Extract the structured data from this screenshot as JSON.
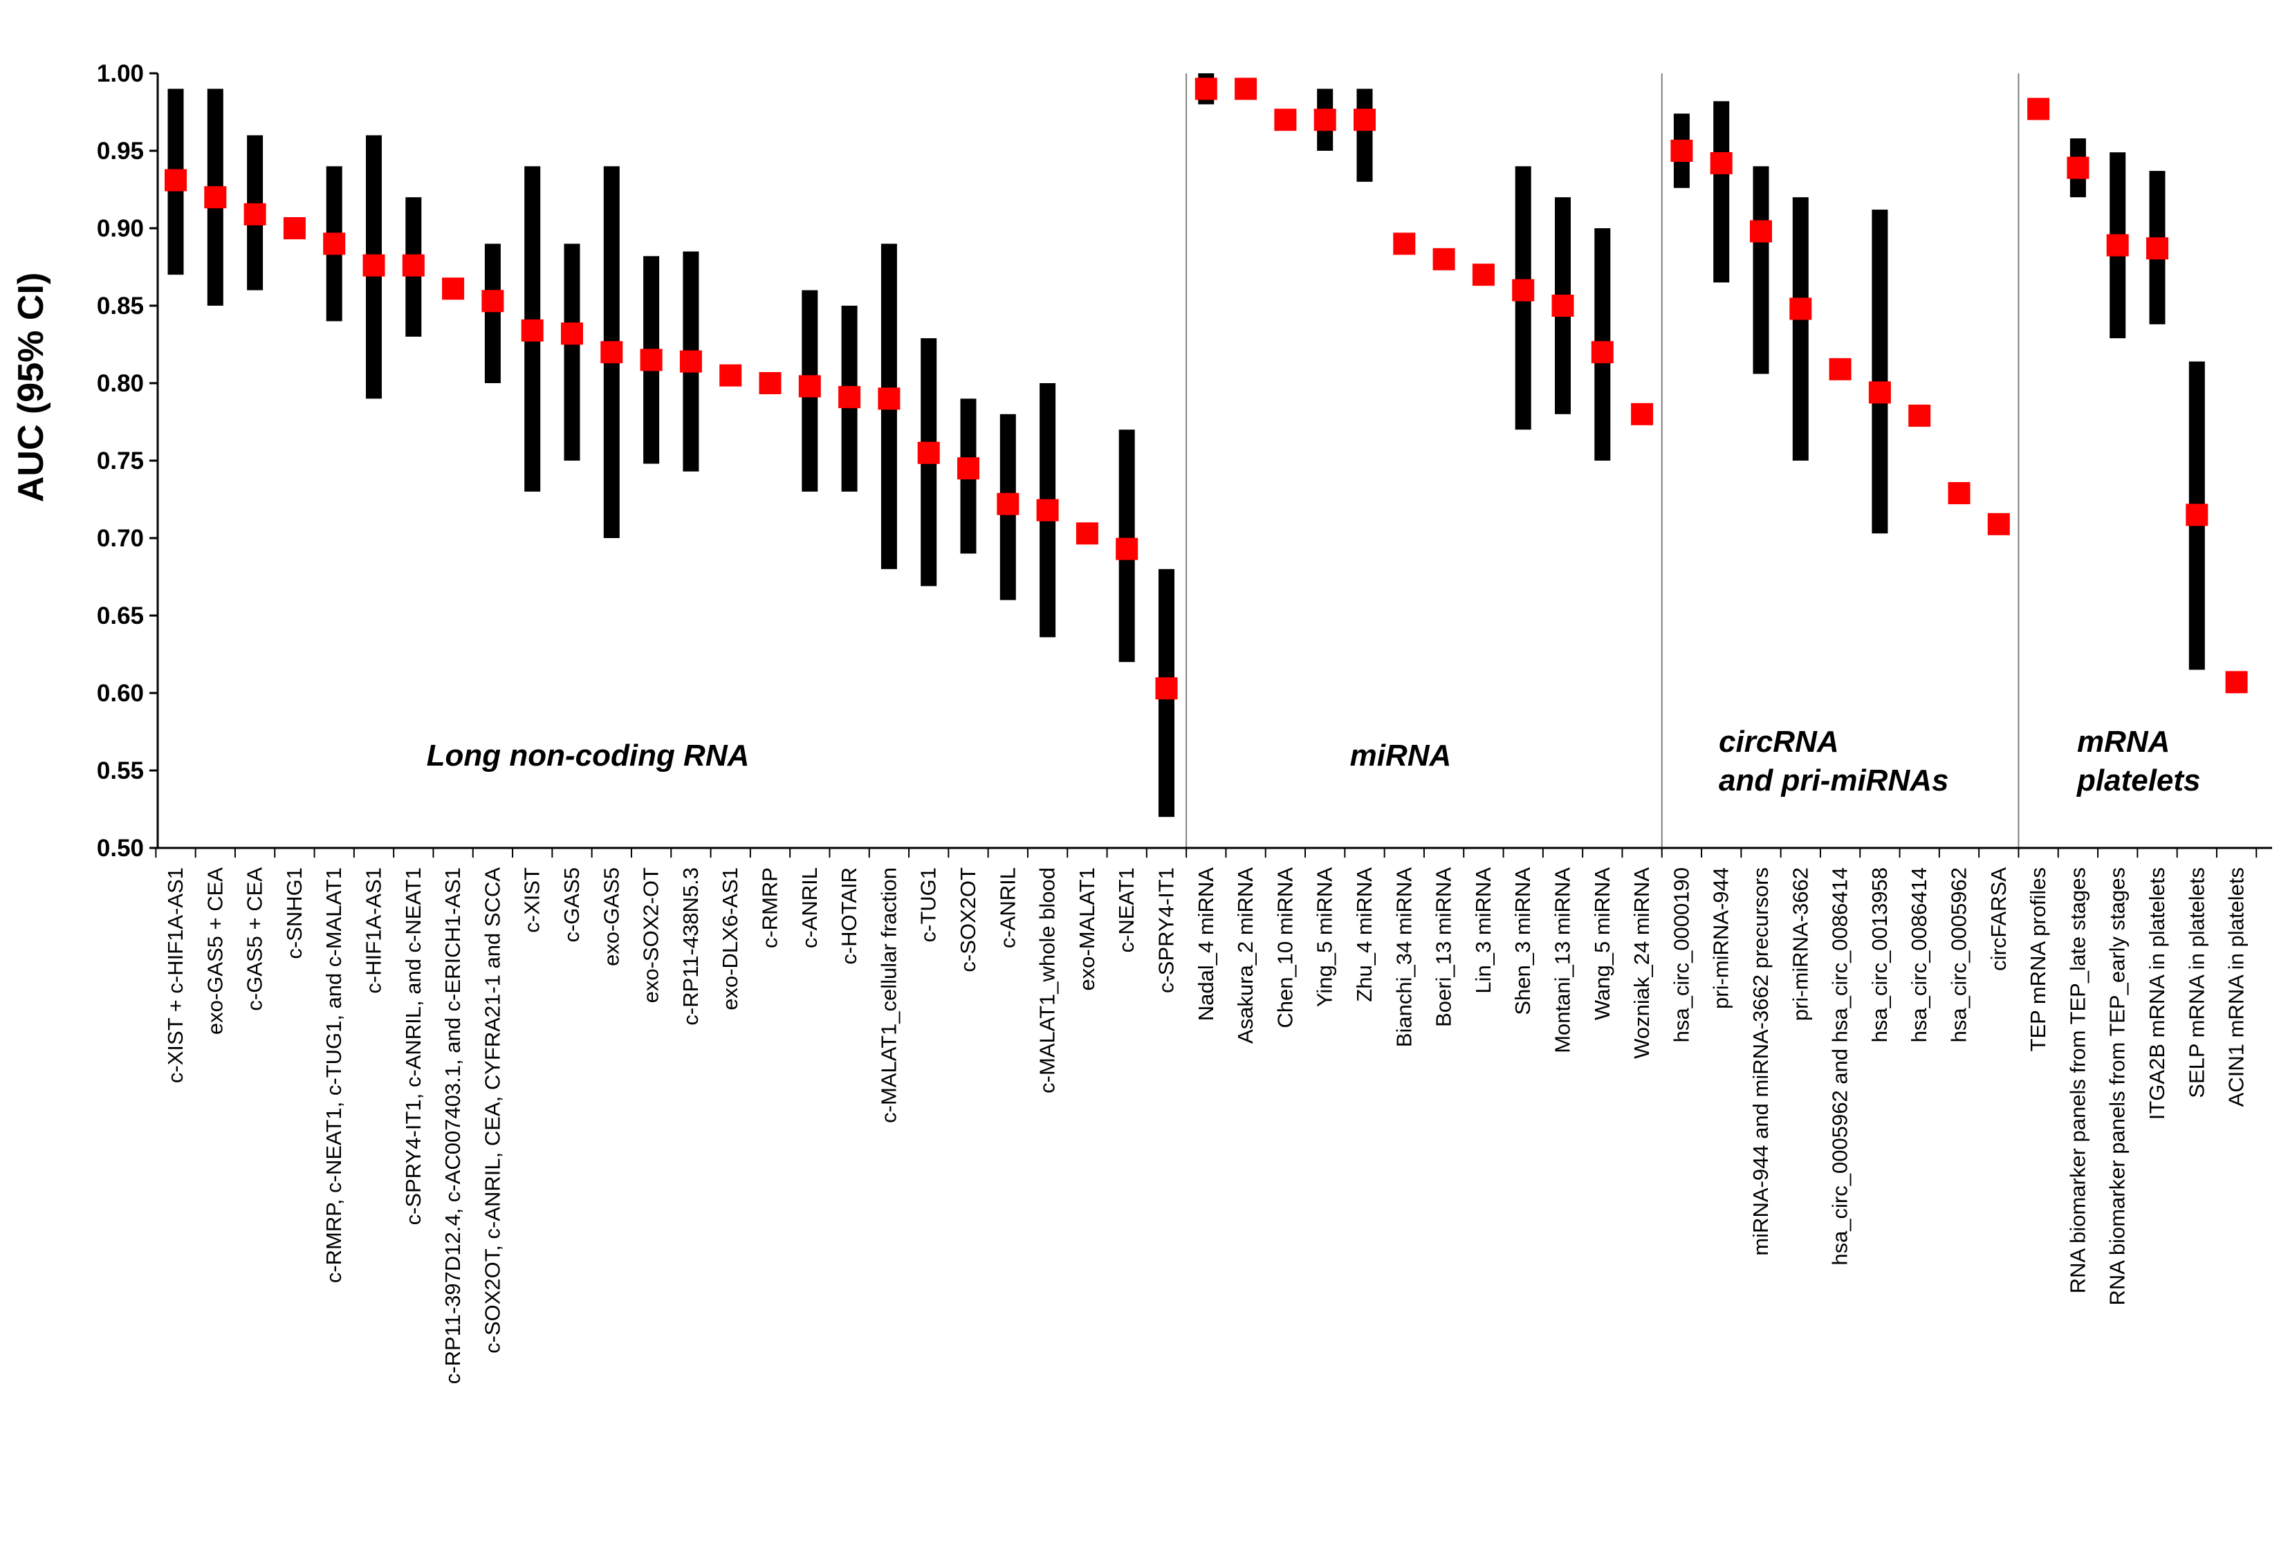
{
  "chart_data": {
    "type": "scatter",
    "ylabel": "AUC (95% CI)",
    "ylim": [
      0.5,
      1.0
    ],
    "yticks": [
      "0.50",
      "0.55",
      "0.60",
      "0.65",
      "0.70",
      "0.75",
      "0.80",
      "0.85",
      "0.90",
      "0.95",
      "1.00"
    ],
    "colors": {
      "point": "#ff0000",
      "ci_bar": "#000000",
      "axis": "#000000",
      "divider": "#808080"
    },
    "groups": [
      {
        "name": "Long non-coding RNA",
        "label_lines": [
          "Long non-coding RNA"
        ]
      },
      {
        "name": "miRNA",
        "label_lines": [
          "miRNA"
        ]
      },
      {
        "name": "circRNA and pri-miRNAs",
        "label_lines": [
          "circRNA",
          "and pri-miRNAs"
        ]
      },
      {
        "name": "mRNA platelets",
        "label_lines": [
          "mRNA",
          "platelets"
        ]
      }
    ],
    "points": [
      {
        "label": "c-XIST + c-HIF1A-AS1",
        "group": 0,
        "auc": 0.931,
        "ci": [
          0.87,
          0.99
        ]
      },
      {
        "label": "exo-GAS5 + CEA",
        "group": 0,
        "auc": 0.92,
        "ci": [
          0.85,
          0.99
        ]
      },
      {
        "label": "c-GAS5 + CEA",
        "group": 0,
        "auc": 0.909,
        "ci": [
          0.86,
          0.96
        ]
      },
      {
        "label": "c-SNHG1",
        "group": 0,
        "auc": 0.9,
        "ci": null
      },
      {
        "label": "c-RMRP, c-NEAT1, c-TUG1, and c-MALAT1",
        "group": 0,
        "auc": 0.89,
        "ci": [
          0.84,
          0.94
        ]
      },
      {
        "label": "c-HIF1A-AS1",
        "group": 0,
        "auc": 0.876,
        "ci": [
          0.79,
          0.96
        ]
      },
      {
        "label": "c-SPRY4-IT1, c-ANRIL, and c-NEAT1",
        "group": 0,
        "auc": 0.876,
        "ci": [
          0.83,
          0.92
        ]
      },
      {
        "label": "c-RP11-397D12.4, c-AC007403.1, and c-ERICH1-AS1",
        "group": 0,
        "auc": 0.861,
        "ci": null
      },
      {
        "label": "c-SOX2OT, c-ANRIL, CEA, CYFRA21-1 and SCCA",
        "group": 0,
        "auc": 0.853,
        "ci": [
          0.8,
          0.89
        ]
      },
      {
        "label": "c-XIST",
        "group": 0,
        "auc": 0.834,
        "ci": [
          0.73,
          0.94
        ]
      },
      {
        "label": "c-GAS5",
        "group": 0,
        "auc": 0.832,
        "ci": [
          0.75,
          0.89
        ]
      },
      {
        "label": "exo-GAS5",
        "group": 0,
        "auc": 0.82,
        "ci": [
          0.7,
          0.94
        ]
      },
      {
        "label": "exo-SOX2-OT",
        "group": 0,
        "auc": 0.815,
        "ci": [
          0.748,
          0.882
        ]
      },
      {
        "label": "c-RP11-438N5.3",
        "group": 0,
        "auc": 0.814,
        "ci": [
          0.743,
          0.885
        ]
      },
      {
        "label": "exo-DLX6-AS1",
        "group": 0,
        "auc": 0.805,
        "ci": null
      },
      {
        "label": "c-RMRP",
        "group": 0,
        "auc": 0.8,
        "ci": null
      },
      {
        "label": "c-ANRIL",
        "group": 0,
        "auc": 0.798,
        "ci": [
          0.73,
          0.86
        ]
      },
      {
        "label": "c-HOTAIR",
        "group": 0,
        "auc": 0.791,
        "ci": [
          0.73,
          0.85
        ]
      },
      {
        "label": "c-MALAT1_cellular fraction",
        "group": 0,
        "auc": 0.79,
        "ci": [
          0.68,
          0.89
        ]
      },
      {
        "label": "c-TUG1",
        "group": 0,
        "auc": 0.755,
        "ci": [
          0.669,
          0.829
        ]
      },
      {
        "label": "c-SOX2OT",
        "group": 0,
        "auc": 0.745,
        "ci": [
          0.69,
          0.79
        ]
      },
      {
        "label": "c-ANRIL",
        "group": 0,
        "auc": 0.722,
        "ci": [
          0.66,
          0.78
        ]
      },
      {
        "label": "c-MALAT1_whole blood",
        "group": 0,
        "auc": 0.718,
        "ci": [
          0.636,
          0.8
        ]
      },
      {
        "label": "exo-MALAT1",
        "group": 0,
        "auc": 0.703,
        "ci": null
      },
      {
        "label": "c-NEAT1",
        "group": 0,
        "auc": 0.693,
        "ci": [
          0.62,
          0.77
        ]
      },
      {
        "label": "c-SPRY4-IT1",
        "group": 0,
        "auc": 0.603,
        "ci": [
          0.52,
          0.68
        ]
      },
      {
        "label": "Nadal_4 miRNA",
        "group": 1,
        "auc": 0.99,
        "ci": [
          0.98,
          1.0
        ]
      },
      {
        "label": "Asakura_2 miRNA",
        "group": 1,
        "auc": 0.99,
        "ci": null
      },
      {
        "label": "Chen_10 miRNA",
        "group": 1,
        "auc": 0.97,
        "ci": null
      },
      {
        "label": "Ying_5 miRNA",
        "group": 1,
        "auc": 0.97,
        "ci": [
          0.95,
          0.99
        ]
      },
      {
        "label": "Zhu_4 miRNA",
        "group": 1,
        "auc": 0.97,
        "ci": [
          0.93,
          0.99
        ]
      },
      {
        "label": "Bianchi_34 miRNA",
        "group": 1,
        "auc": 0.89,
        "ci": null
      },
      {
        "label": "Boeri_13 miRNA",
        "group": 1,
        "auc": 0.88,
        "ci": null
      },
      {
        "label": "Lin_3 miRNA",
        "group": 1,
        "auc": 0.87,
        "ci": null
      },
      {
        "label": "Shen_3 miRNA",
        "group": 1,
        "auc": 0.86,
        "ci": [
          0.77,
          0.94
        ]
      },
      {
        "label": "Montani_13 miRNA",
        "group": 1,
        "auc": 0.85,
        "ci": [
          0.78,
          0.92
        ]
      },
      {
        "label": "Wang_5 miRNA",
        "group": 1,
        "auc": 0.82,
        "ci": [
          0.75,
          0.9
        ]
      },
      {
        "label": "Wozniak_24 miRNA",
        "group": 1,
        "auc": 0.78,
        "ci": null
      },
      {
        "label": "hsa_circ_0000190",
        "group": 2,
        "auc": 0.95,
        "ci": [
          0.926,
          0.974
        ]
      },
      {
        "label": "pri-miRNA-944",
        "group": 2,
        "auc": 0.942,
        "ci": [
          0.865,
          0.982
        ]
      },
      {
        "label": "miRNA-944 and miRNA-3662 precursors",
        "group": 2,
        "auc": 0.898,
        "ci": [
          0.806,
          0.94
        ]
      },
      {
        "label": "pri-miRNA-3662",
        "group": 2,
        "auc": 0.848,
        "ci": [
          0.75,
          0.92
        ]
      },
      {
        "label": "hsa_circ_0005962 and hsa_circ_0086414",
        "group": 2,
        "auc": 0.809,
        "ci": null
      },
      {
        "label": "hsa_circ_0013958",
        "group": 2,
        "auc": 0.794,
        "ci": [
          0.703,
          0.912
        ]
      },
      {
        "label": "hsa_circ_0086414",
        "group": 2,
        "auc": 0.779,
        "ci": null
      },
      {
        "label": "hsa_circ_0005962",
        "group": 2,
        "auc": 0.729,
        "ci": null
      },
      {
        "label": "circFARSA",
        "group": 2,
        "auc": 0.709,
        "ci": null
      },
      {
        "label": "TEP mRNA profiles",
        "group": 3,
        "auc": 0.977,
        "ci": null
      },
      {
        "label": "RNA biomarker panels from TEP_late stages",
        "group": 3,
        "auc": 0.939,
        "ci": [
          0.92,
          0.958
        ]
      },
      {
        "label": "RNA biomarker panels from TEP_early stages",
        "group": 3,
        "auc": 0.889,
        "ci": [
          0.829,
          0.949
        ]
      },
      {
        "label": "ITGA2B mRNA in platelets",
        "group": 3,
        "auc": 0.887,
        "ci": [
          0.838,
          0.937
        ]
      },
      {
        "label": "SELP mRNA in platelets",
        "group": 3,
        "auc": 0.715,
        "ci": [
          0.615,
          0.814
        ]
      },
      {
        "label": "ACIN1 mRNA in platelets",
        "group": 3,
        "auc": 0.607,
        "ci": null
      }
    ]
  }
}
